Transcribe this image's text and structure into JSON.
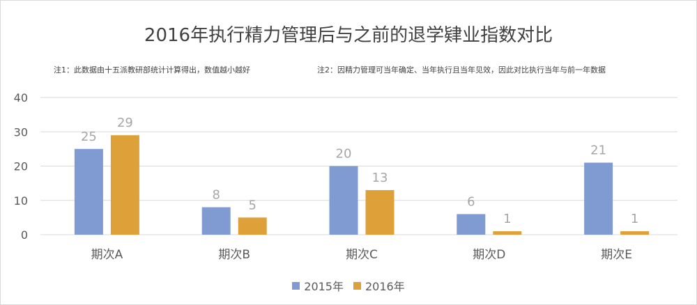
{
  "colors": {
    "s2015": "#7f9bd2",
    "s2016": "#dea13a",
    "grid": "#d9d9d9",
    "text": "#595959",
    "label": "#a6a6a6"
  },
  "title": "2016年执行精力管理后与之前的退学肄业指数对比",
  "notes": {
    "note1": "注1：此数据由十五派教研部统计计算得出，数值越小越好",
    "note2": "注2：因精力管理可当年确定、当年执行且当年见效，因此对比执行当年与前一年数据"
  },
  "chart_data": {
    "type": "bar",
    "title": "2016年执行精力管理后与之前的退学肄业指数对比",
    "categories": [
      "期次A",
      "期次B",
      "期次C",
      "期次D",
      "期次E"
    ],
    "series": [
      {
        "name": "2015年",
        "values": [
          25,
          8,
          20,
          6,
          21
        ]
      },
      {
        "name": "2016年",
        "values": [
          29,
          5,
          13,
          1,
          1
        ]
      }
    ],
    "ylim": [
      0,
      40
    ],
    "yticks": [
      0,
      10,
      20,
      30,
      40
    ],
    "grid": true,
    "legend": "bottom"
  }
}
